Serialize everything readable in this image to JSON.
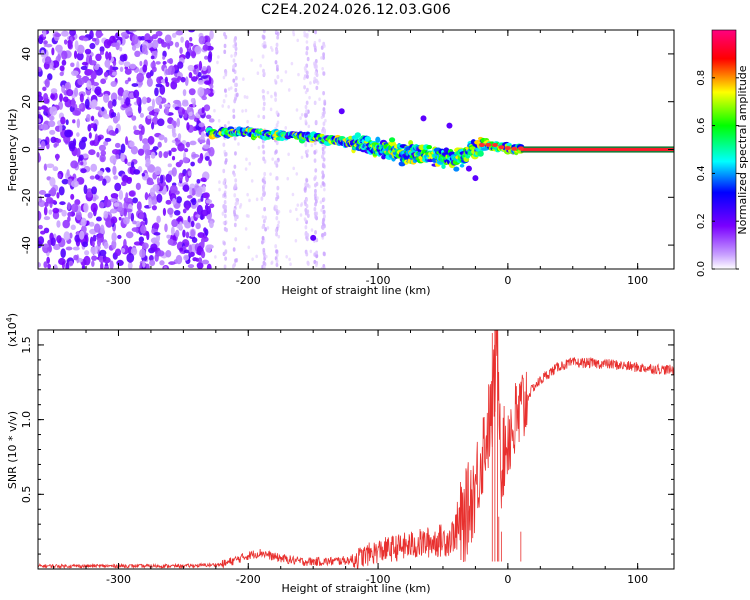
{
  "figure_title": "C2E4.2024.026.12.03.G06",
  "colors": {
    "snr_line": "#e8302e",
    "axes": "#000000"
  },
  "chart_data": [
    {
      "type": "heatmap",
      "title": "",
      "xlabel": "Height of straight line (km)",
      "ylabel": "Frequency (Hz)",
      "xlim": [
        -362,
        128
      ],
      "ylim": [
        -50,
        50
      ],
      "xticks": [
        -300,
        -200,
        -100,
        0,
        100
      ],
      "yticks": [
        -40,
        -20,
        0,
        20,
        40
      ],
      "colorbar": {
        "label": "Normalized spectral amplitude",
        "range": [
          0,
          1
        ],
        "ticks": [
          "0.0",
          "0.2",
          "0.4",
          "0.6",
          "0.8"
        ],
        "colormap": [
          "#ffffff",
          "#c8a0ff",
          "#7a00ff",
          "#0000ff",
          "#00ffff",
          "#00ff00",
          "#ffff00",
          "#ff0000",
          "#ff0080"
        ]
      },
      "features": [
        {
          "name": "noise_band",
          "x_range": [
            -362,
            -228
          ],
          "freq_range": [
            -50,
            50
          ],
          "amplitude": [
            0.1,
            0.3
          ]
        },
        {
          "name": "faint_streaks",
          "x_range": [
            -228,
            -140
          ],
          "freq_range": [
            -50,
            50
          ],
          "amplitude": [
            0.05,
            0.1
          ]
        },
        {
          "name": "signal_trace",
          "points": [
            [
              -230,
              7
            ],
            [
              -200,
              7
            ],
            [
              -150,
              5
            ],
            [
              -120,
              3
            ],
            [
              -100,
              1
            ],
            [
              -80,
              -2
            ],
            [
              -60,
              -2
            ],
            [
              -40,
              -4
            ],
            [
              -20,
              2
            ],
            [
              -5,
              1
            ],
            [
              10,
              0
            ],
            [
              128,
              0
            ]
          ],
          "amplitude": [
            0.3,
            0.9
          ]
        }
      ]
    },
    {
      "type": "line",
      "title": "",
      "xlabel": "Height of straight line (km)",
      "ylabel": "SNR (10 * v/v)",
      "yscale_note": "(x10",
      "yscale_exp": "4",
      "xlim": [
        -362,
        128
      ],
      "ylim": [
        0,
        1.6
      ],
      "xticks": [
        -300,
        -200,
        -100,
        0,
        100
      ],
      "yticks": [
        "0.5",
        "1.0",
        "1.5"
      ],
      "series": [
        {
          "x": [
            -362,
            -300,
            -250,
            -220,
            -200,
            -190,
            -180,
            -160,
            -140,
            -120,
            -100,
            -80,
            -60,
            -45,
            -35,
            -25,
            -18,
            -12,
            -8,
            -5,
            0,
            5,
            10,
            15,
            20,
            30,
            40,
            50,
            60,
            80,
            100,
            128
          ],
          "y": [
            0.02,
            0.02,
            0.02,
            0.03,
            0.09,
            0.11,
            0.08,
            0.05,
            0.05,
            0.06,
            0.12,
            0.15,
            0.18,
            0.2,
            0.3,
            0.55,
            0.85,
            1.05,
            1.55,
            0.7,
            0.9,
            0.95,
            1.05,
            1.15,
            1.22,
            1.3,
            1.36,
            1.38,
            1.38,
            1.37,
            1.35,
            1.33
          ]
        }
      ]
    }
  ]
}
